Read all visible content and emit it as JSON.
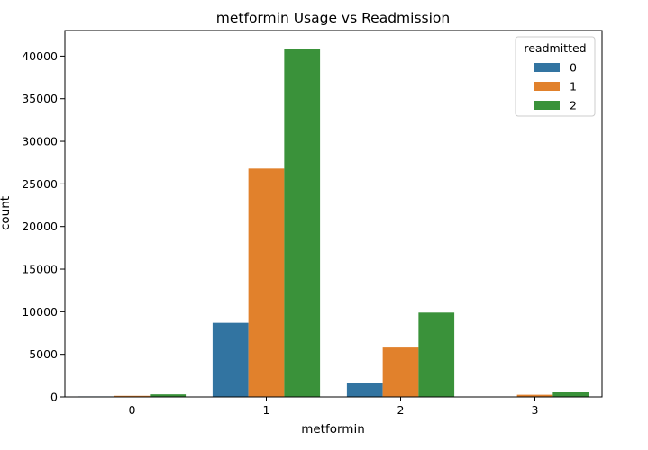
{
  "chart_data": {
    "type": "bar",
    "title": "metformin Usage vs Readmission",
    "xlabel": "metformin",
    "ylabel": "count",
    "categories": [
      "0",
      "1",
      "2",
      "3"
    ],
    "ylim": [
      0,
      43000
    ],
    "yticks": [
      0,
      5000,
      10000,
      15000,
      20000,
      25000,
      30000,
      35000,
      40000
    ],
    "legend": {
      "title": "readmitted",
      "placement": "top-right"
    },
    "series": [
      {
        "name": "0",
        "color": "#3274a1",
        "values": [
          60,
          8700,
          1650,
          30
        ]
      },
      {
        "name": "1",
        "color": "#e1812c",
        "values": [
          130,
          26800,
          5800,
          250
        ]
      },
      {
        "name": "2",
        "color": "#3a923a",
        "values": [
          300,
          40800,
          9900,
          600
        ]
      }
    ]
  }
}
